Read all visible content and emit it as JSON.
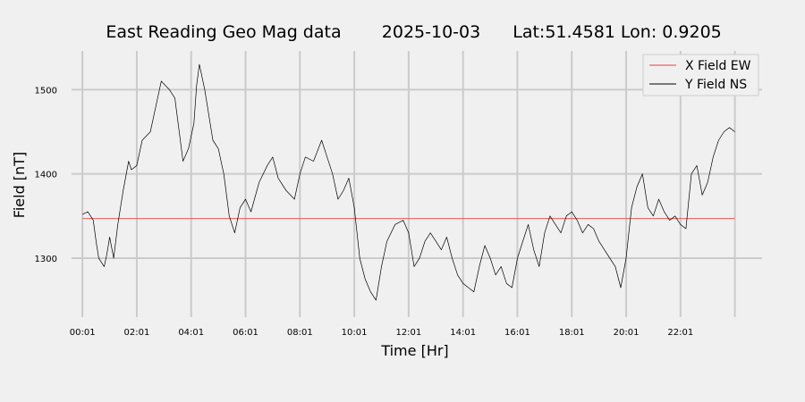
{
  "chart_data": {
    "type": "line",
    "title_parts": [
      "East Reading Geo Mag data",
      "2025-10-03",
      "Lat:51.4581  Lon: 0.9205"
    ],
    "xlabel": "Time  [Hr]",
    "ylabel": "Field  [nT]",
    "xlim": [
      -0.4,
      25.0
    ],
    "ylim": [
      1230,
      1546
    ],
    "x_ticks": [
      {
        "value": 0.0,
        "label": "00:01"
      },
      {
        "value": 2.0,
        "label": "02:01"
      },
      {
        "value": 4.0,
        "label": "04:01"
      },
      {
        "value": 6.0,
        "label": "06:01"
      },
      {
        "value": 8.0,
        "label": "08:01"
      },
      {
        "value": 10.0,
        "label": "10:01"
      },
      {
        "value": 12.0,
        "label": "12:01"
      },
      {
        "value": 14.0,
        "label": "14:01"
      },
      {
        "value": 16.0,
        "label": "16:01"
      },
      {
        "value": 18.0,
        "label": "18:01"
      },
      {
        "value": 20.0,
        "label": "20:01"
      },
      {
        "value": 22.0,
        "label": "22:01"
      },
      {
        "value": 24.0,
        "label": ""
      }
    ],
    "y_ticks": [
      {
        "value": 1300,
        "label": "1300"
      },
      {
        "value": 1400,
        "label": "1400"
      },
      {
        "value": 1500,
        "label": "1500"
      }
    ],
    "grid": true,
    "legend_position": "top-right",
    "series": [
      {
        "name": "X Field EW",
        "color": "#e8433b",
        "x": [
          0.0,
          24.0
        ],
        "y": [
          1347,
          1347
        ]
      },
      {
        "name": "Y Field NS",
        "color": "#000000",
        "x": [
          0.0,
          0.2,
          0.4,
          0.5,
          0.6,
          0.8,
          0.9,
          1.0,
          1.15,
          1.3,
          1.5,
          1.7,
          1.8,
          2.0,
          2.2,
          2.5,
          2.7,
          2.9,
          3.2,
          3.4,
          3.6,
          3.7,
          3.9,
          4.1,
          4.2,
          4.3,
          4.5,
          4.8,
          5.0,
          5.2,
          5.4,
          5.6,
          5.8,
          6.0,
          6.2,
          6.5,
          6.8,
          7.0,
          7.2,
          7.5,
          7.8,
          8.0,
          8.2,
          8.5,
          8.8,
          9.0,
          9.2,
          9.4,
          9.6,
          9.8,
          10.0,
          10.2,
          10.4,
          10.6,
          10.8,
          11.0,
          11.2,
          11.5,
          11.8,
          12.0,
          12.2,
          12.4,
          12.6,
          12.8,
          13.0,
          13.2,
          13.4,
          13.6,
          13.8,
          14.0,
          14.2,
          14.4,
          14.6,
          14.8,
          15.0,
          15.2,
          15.4,
          15.6,
          15.8,
          16.0,
          16.2,
          16.4,
          16.6,
          16.8,
          17.0,
          17.2,
          17.4,
          17.6,
          17.8,
          18.0,
          18.2,
          18.4,
          18.6,
          18.8,
          19.0,
          19.2,
          19.4,
          19.6,
          19.8,
          20.0,
          20.2,
          20.4,
          20.6,
          20.8,
          21.0,
          21.2,
          21.4,
          21.6,
          21.8,
          22.0,
          22.2,
          22.4,
          22.6,
          22.8,
          23.0,
          23.2,
          23.4,
          23.6,
          23.8,
          24.0
        ],
        "y": [
          1352,
          1355,
          1345,
          1320,
          1300,
          1290,
          1305,
          1325,
          1300,
          1340,
          1380,
          1415,
          1405,
          1410,
          1440,
          1450,
          1480,
          1510,
          1500,
          1490,
          1440,
          1415,
          1430,
          1460,
          1505,
          1530,
          1500,
          1440,
          1430,
          1400,
          1350,
          1330,
          1360,
          1370,
          1355,
          1390,
          1410,
          1420,
          1395,
          1380,
          1370,
          1400,
          1420,
          1415,
          1440,
          1420,
          1400,
          1370,
          1380,
          1395,
          1360,
          1300,
          1275,
          1260,
          1250,
          1290,
          1320,
          1340,
          1345,
          1330,
          1290,
          1300,
          1320,
          1330,
          1320,
          1310,
          1325,
          1300,
          1280,
          1270,
          1265,
          1260,
          1290,
          1315,
          1300,
          1280,
          1290,
          1270,
          1265,
          1300,
          1320,
          1340,
          1310,
          1290,
          1330,
          1350,
          1340,
          1330,
          1350,
          1355,
          1345,
          1330,
          1340,
          1335,
          1320,
          1310,
          1300,
          1290,
          1265,
          1300,
          1360,
          1385,
          1400,
          1360,
          1350,
          1370,
          1355,
          1345,
          1350,
          1340,
          1335,
          1400,
          1410,
          1375,
          1390,
          1420,
          1440,
          1450,
          1455,
          1450
        ]
      }
    ]
  }
}
